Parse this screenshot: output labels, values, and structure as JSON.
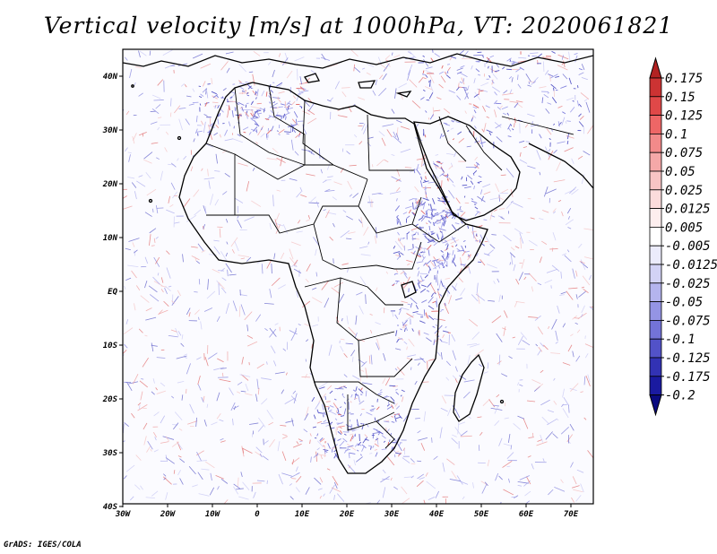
{
  "title": "Vertical velocity [m/s] at 1000hPa, VT: 2020061821",
  "footer": "GrADS: IGES/COLA",
  "map": {
    "lon_labels": [
      "30W",
      "20W",
      "10W",
      "0",
      "10E",
      "20E",
      "30E",
      "40E",
      "50E",
      "60E",
      "70E"
    ],
    "lat_labels": [
      "40N",
      "30N",
      "20N",
      "10N",
      "EQ",
      "10S",
      "20S",
      "30S",
      "40S"
    ]
  },
  "colorbar": {
    "levels": [
      "0.175",
      "0.15",
      "0.125",
      "0.1",
      "0.075",
      "0.05",
      "0.025",
      "0.0125",
      "0.005",
      "-0.005",
      "-0.0125",
      "-0.025",
      "-0.05",
      "-0.075",
      "-0.1",
      "-0.125",
      "-0.175",
      "-0.2"
    ],
    "colors": [
      "#b22222",
      "#cc3333",
      "#e04848",
      "#ee6666",
      "#f28a8a",
      "#f5a8a8",
      "#f8c4c4",
      "#fbdcdc",
      "#fdeeee",
      "#ffffff",
      "#ebebfb",
      "#d2d2f5",
      "#b4b4ee",
      "#9494e4",
      "#7373d8",
      "#5252c8",
      "#3232b4",
      "#1a1aa0",
      "#0a0a80"
    ]
  }
}
